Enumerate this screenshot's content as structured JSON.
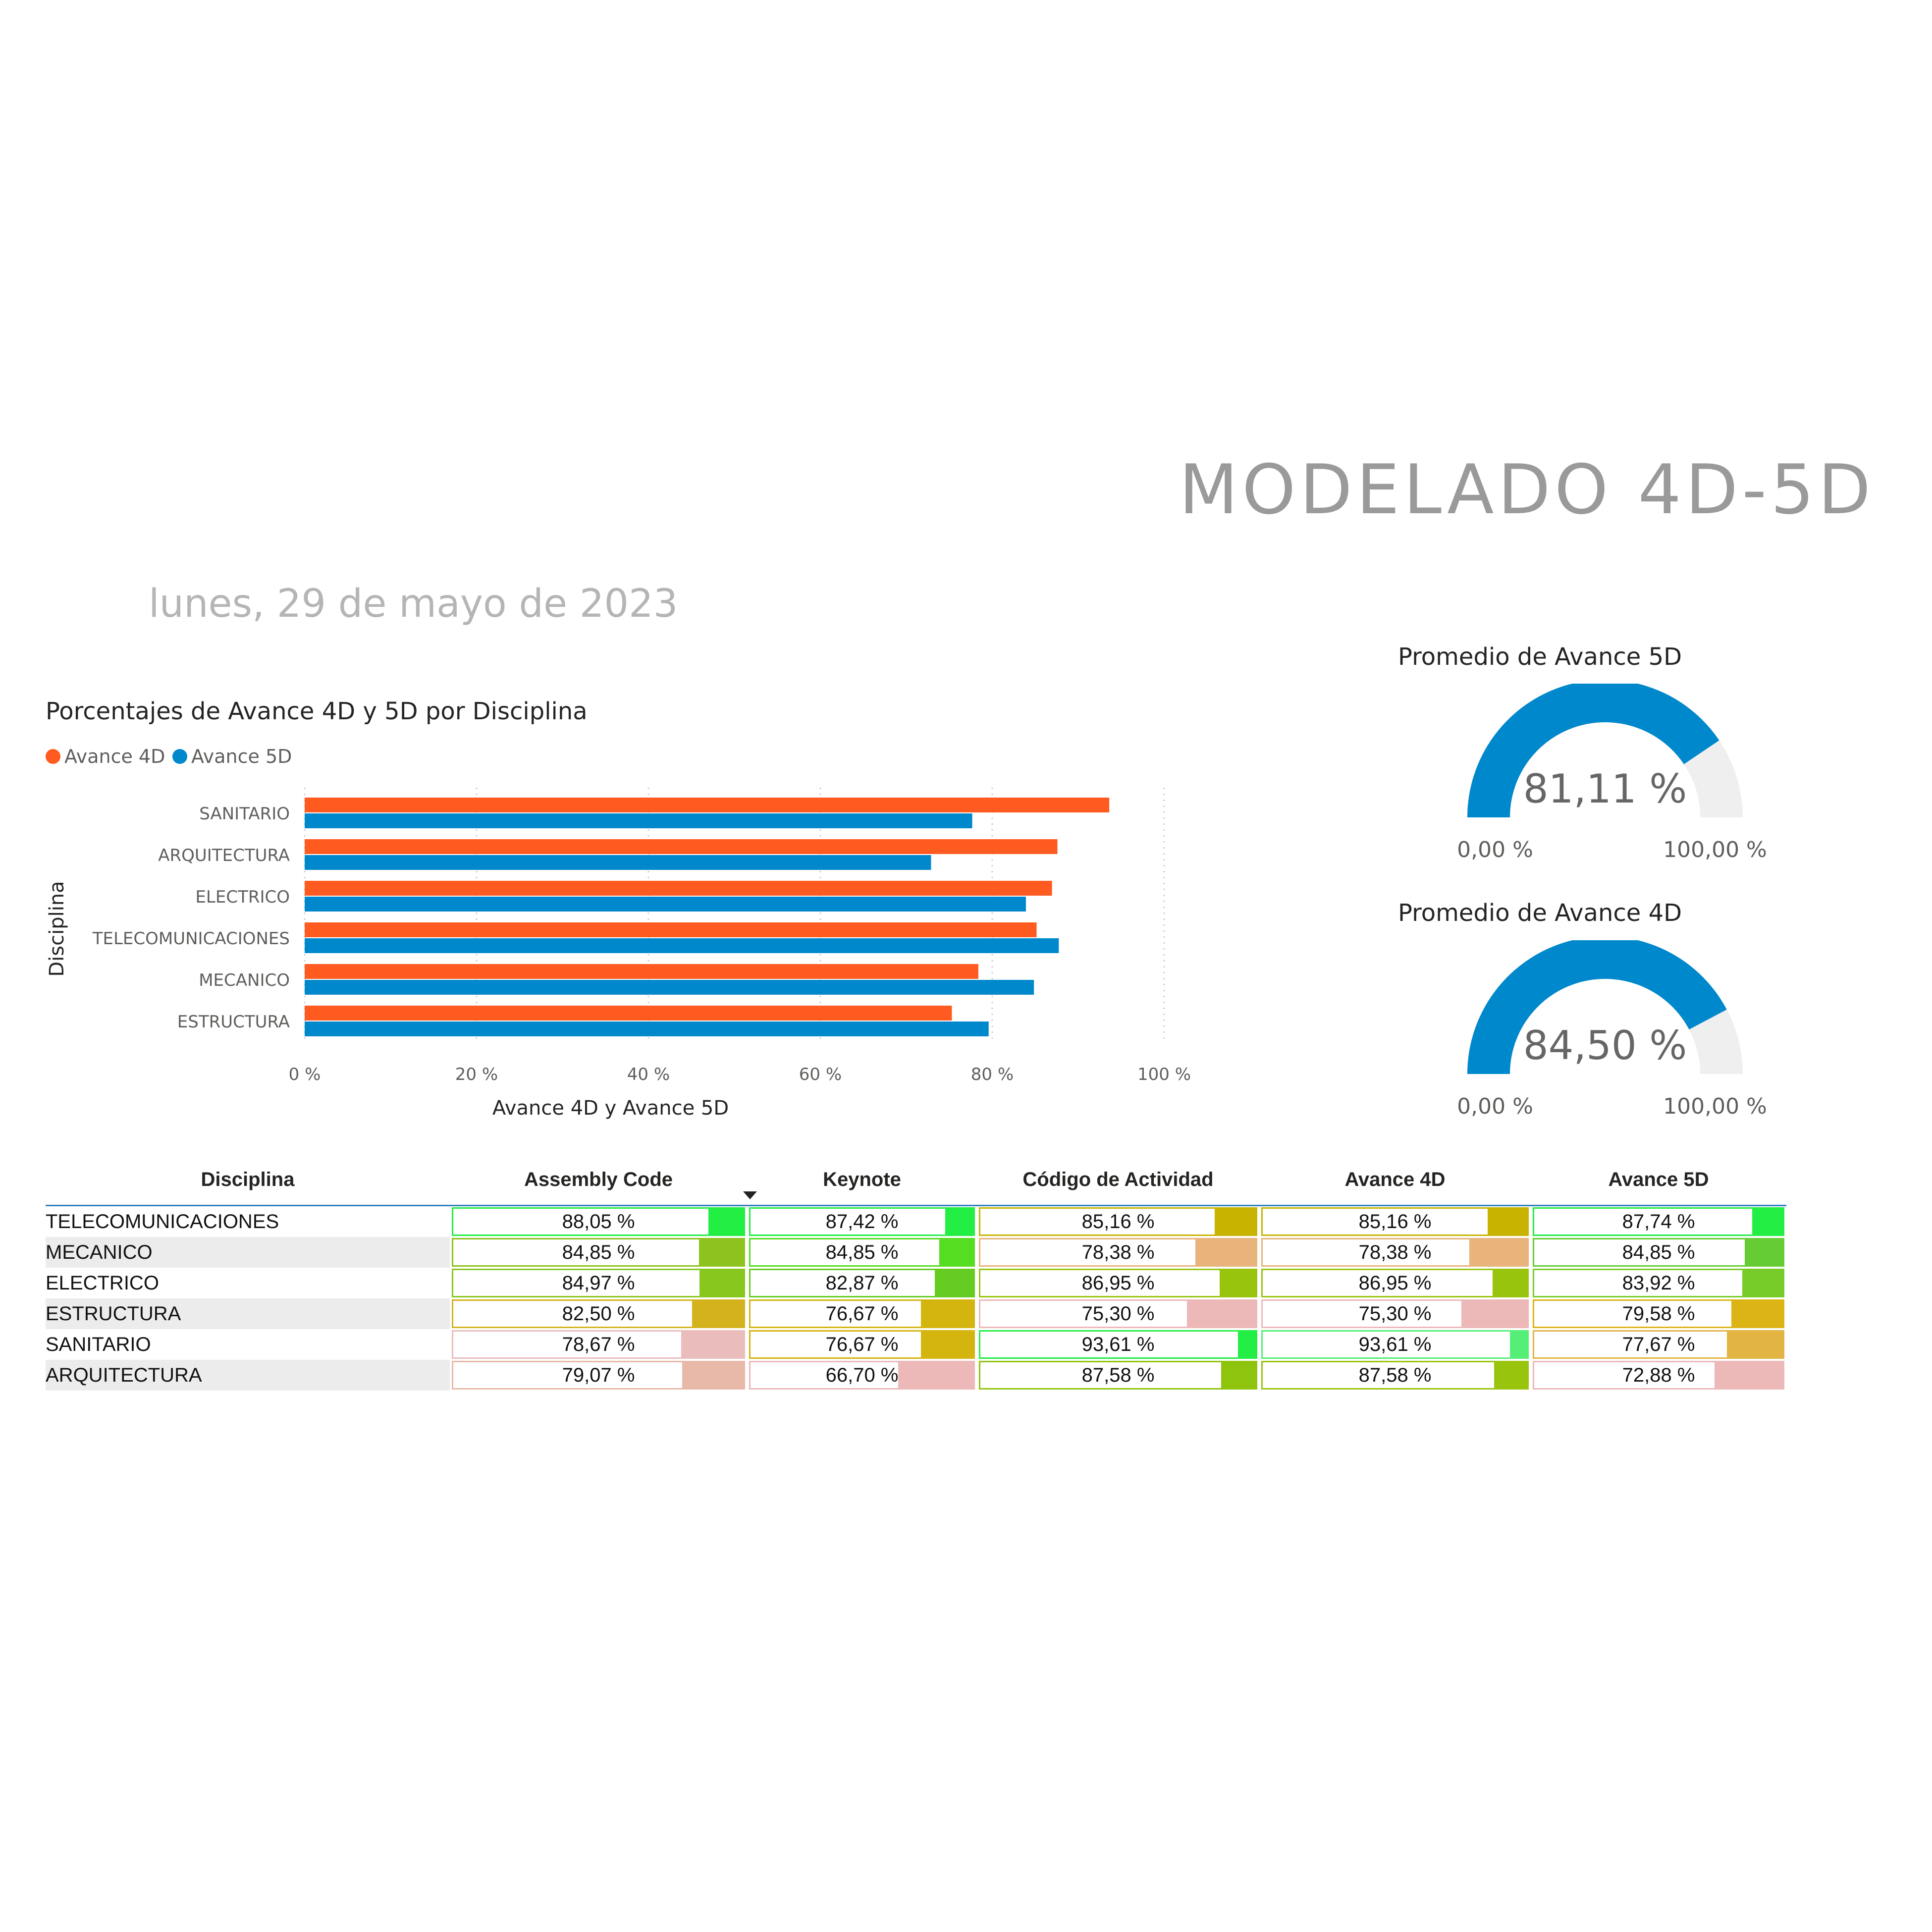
{
  "header": {
    "title": "MODELADO 4D-5D",
    "date": "lunes, 29 de mayo de 2023"
  },
  "bar_chart": {
    "title": "Porcentajes de Avance 4D y 5D por Disciplina",
    "legend": [
      {
        "label": "Avance 4D",
        "color": "#ff5a1f"
      },
      {
        "label": "Avance 5D",
        "color": "#0088cc"
      }
    ]
  },
  "gauges": {
    "avance5d": {
      "title": "Promedio de Avance 5D",
      "value_label": "81,11 %",
      "min_label": "0,00 %",
      "max_label": "100,00 %"
    },
    "avance4d": {
      "title": "Promedio de Avance 4D",
      "value_label": "84,50 %",
      "min_label": "0,00 %",
      "max_label": "100,00 %"
    }
  },
  "chart_data": [
    {
      "type": "bar",
      "orientation": "horizontal",
      "title": "Porcentajes de Avance 4D y 5D por Disciplina",
      "xlabel": "Avance 4D y Avance 5D",
      "ylabel": "Disciplina",
      "categories": [
        "SANITARIO",
        "ARQUITECTURA",
        "ELECTRICO",
        "TELECOMUNICACIONES",
        "MECANICO",
        "ESTRUCTURA"
      ],
      "series": [
        {
          "name": "Avance 4D",
          "color": "#ff5a1f",
          "values": [
            93.61,
            87.58,
            86.95,
            85.16,
            78.38,
            75.3
          ]
        },
        {
          "name": "Avance 5D",
          "color": "#0088cc",
          "values": [
            77.67,
            72.88,
            83.92,
            87.74,
            84.85,
            79.58
          ]
        }
      ],
      "xlim": [
        0,
        100
      ],
      "xticks": [
        "0 %",
        "20 %",
        "40 %",
        "60 %",
        "80 %",
        "100 %"
      ],
      "grid": true,
      "legend": "top-left"
    },
    {
      "type": "gauge",
      "title": "Promedio de Avance 5D",
      "value": 81.11,
      "min": 0,
      "max": 100,
      "color": "#0088cc"
    },
    {
      "type": "gauge",
      "title": "Promedio de Avance 4D",
      "value": 84.5,
      "min": 0,
      "max": 100,
      "color": "#0088cc"
    }
  ],
  "table": {
    "columns": [
      "Disciplina",
      "Assembly Code",
      "Keynote",
      "Código de Actividad",
      "Avance 4D",
      "Avance 5D"
    ],
    "sorted_column": "Assembly Code",
    "rows": [
      {
        "disciplina": "TELECOMUNICACIONES",
        "cells": [
          {
            "label": "88,05 %",
            "value": 88.05,
            "color": "#22ee44"
          },
          {
            "label": "87,42 %",
            "value": 87.42,
            "color": "#22ee44"
          },
          {
            "label": "85,16 %",
            "value": 85.16,
            "color": "#c8b400"
          },
          {
            "label": "85,16 %",
            "value": 85.16,
            "color": "#c8b400"
          },
          {
            "label": "87,74 %",
            "value": 87.74,
            "color": "#22ee44"
          }
        ]
      },
      {
        "disciplina": "MECANICO",
        "cells": [
          {
            "label": "84,85 %",
            "value": 84.85,
            "color": "#8dc21f"
          },
          {
            "label": "84,85 %",
            "value": 84.85,
            "color": "#55dd22"
          },
          {
            "label": "78,38 %",
            "value": 78.38,
            "color": "#e8b47c"
          },
          {
            "label": "78,38 %",
            "value": 78.38,
            "color": "#e8b47c"
          },
          {
            "label": "84,85 %",
            "value": 84.85,
            "color": "#66cc33"
          }
        ]
      },
      {
        "disciplina": "ELECTRICO",
        "cells": [
          {
            "label": "84,97 %",
            "value": 84.97,
            "color": "#88c71e"
          },
          {
            "label": "82,87 %",
            "value": 82.87,
            "color": "#66cc22"
          },
          {
            "label": "86,95 %",
            "value": 86.95,
            "color": "#99c40e"
          },
          {
            "label": "86,95 %",
            "value": 86.95,
            "color": "#99c40e"
          },
          {
            "label": "83,92 %",
            "value": 83.92,
            "color": "#77cc2a"
          }
        ]
      },
      {
        "disciplina": "ESTRUCTURA",
        "cells": [
          {
            "label": "82,50 %",
            "value": 82.5,
            "color": "#d4b21e"
          },
          {
            "label": "76,67 %",
            "value": 76.67,
            "color": "#d4b40e"
          },
          {
            "label": "75,30 %",
            "value": 75.3,
            "color": "#edb8b8"
          },
          {
            "label": "75,30 %",
            "value": 75.3,
            "color": "#edb8b8"
          },
          {
            "label": "79,58 %",
            "value": 79.58,
            "color": "#dcb416"
          }
        ]
      },
      {
        "disciplina": "SANITARIO",
        "cells": [
          {
            "label": "78,67 %",
            "value": 78.67,
            "color": "#ebbcbc"
          },
          {
            "label": "76,67 %",
            "value": 76.67,
            "color": "#d4b40e"
          },
          {
            "label": "93,61 %",
            "value": 93.61,
            "color": "#22ee44"
          },
          {
            "label": "93,61 %",
            "value": 93.61,
            "color": "#55ee77"
          },
          {
            "label": "77,67 %",
            "value": 77.67,
            "color": "#e2b444"
          }
        ]
      },
      {
        "disciplina": "ARQUITECTURA",
        "cells": [
          {
            "label": "79,07 %",
            "value": 79.07,
            "color": "#e8b8a8"
          },
          {
            "label": "66,70 %",
            "value": 66.7,
            "color": "#ecb8b8"
          },
          {
            "label": "87,58 %",
            "value": 87.58,
            "color": "#8ec40e"
          },
          {
            "label": "87,58 %",
            "value": 87.58,
            "color": "#99c40e"
          },
          {
            "label": "72,88 %",
            "value": 72.88,
            "color": "#ecb8b8"
          }
        ]
      }
    ]
  }
}
